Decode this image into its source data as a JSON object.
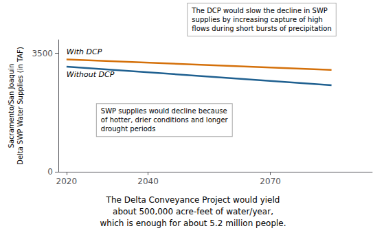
{
  "chart_data": {
    "type": "line",
    "x": [
      2020,
      2085
    ],
    "series": [
      {
        "name": "With DCP",
        "color": "#d4700a",
        "values": [
          3320,
          3010
        ]
      },
      {
        "name": "Without DCP",
        "color": "#1f6090",
        "values": [
          3110,
          2560
        ]
      }
    ],
    "ylabel": "Sacramento/San Joaquin\nDelta SWP Water Supplies (in TAF)",
    "xlim": [
      2018,
      2095
    ],
    "xticks": [
      2020,
      2040,
      2070
    ],
    "ylim": [
      0,
      3900
    ],
    "yticks": [
      0,
      3500
    ],
    "grid": false,
    "annotations": [
      "The DCP would slow the decline in SWP\nsupplies by increasing capture of high\nflows during short bursts of precipitation",
      "SWP supplies would decline because\nof hotter, drier conditions and longer\ndrought periods"
    ],
    "subtitle": "The Delta Conveyance Project would yield\nabout 500,000 acre-feet of water/year,\nwhich is enough for about 5.2 million people."
  }
}
